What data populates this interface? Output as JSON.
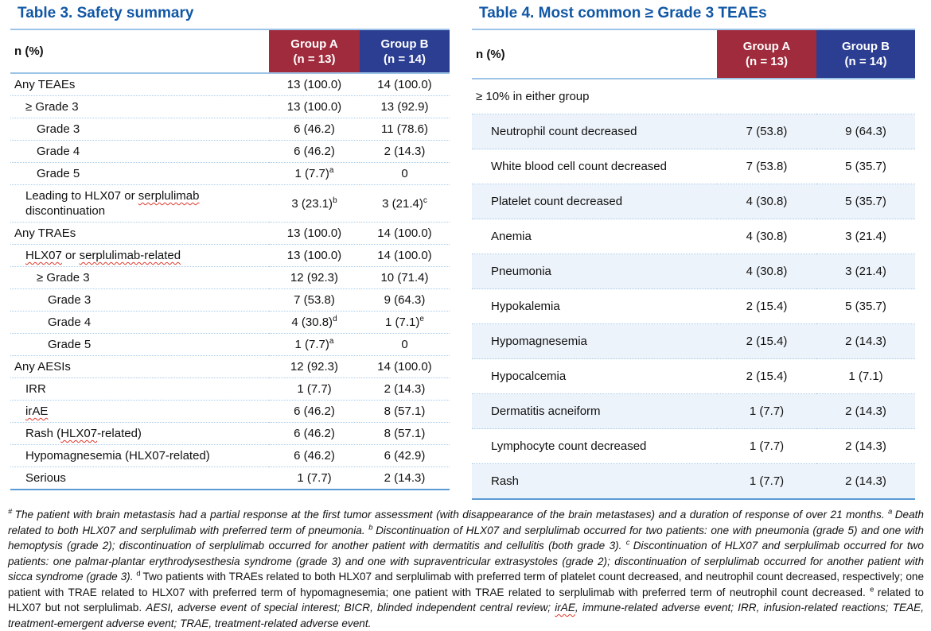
{
  "colors": {
    "title_blue": "#1157A6",
    "group_a_bg": "#A02B3C",
    "group_b_bg": "#2B3E92",
    "header_line": "#9DC3E6",
    "row_separator": "#A6CBEA",
    "bottom_border": "#5B9BD5",
    "alt_row_bg": "#EDF3FA",
    "squiggle_red": "#E0392B"
  },
  "table3": {
    "title": "Table 3. Safety summary",
    "header": {
      "label": "n (%)",
      "group_a_line1": "Group A",
      "group_a_line2": "(n = 13)",
      "group_b_line1": "Group B",
      "group_b_line2": "(n = 14)"
    },
    "rows": [
      {
        "indent": 0,
        "label": [
          {
            "t": "Any TEAEs"
          }
        ],
        "a": "13 (100.0)",
        "a_sup": "",
        "b": "14 (100.0)",
        "b_sup": ""
      },
      {
        "indent": 1,
        "label": [
          {
            "t": "≥ Grade 3"
          }
        ],
        "a": "13 (100.0)",
        "a_sup": "",
        "b": "13 (92.9)",
        "b_sup": ""
      },
      {
        "indent": 2,
        "label": [
          {
            "t": "Grade 3"
          }
        ],
        "a": "6 (46.2)",
        "a_sup": "",
        "b": "11 (78.6)",
        "b_sup": ""
      },
      {
        "indent": 2,
        "label": [
          {
            "t": "Grade 4"
          }
        ],
        "a": "6 (46.2)",
        "a_sup": "",
        "b": "2 (14.3)",
        "b_sup": ""
      },
      {
        "indent": 2,
        "label": [
          {
            "t": "Grade 5"
          }
        ],
        "a": "1 (7.7)",
        "a_sup": "a",
        "b": "0",
        "b_sup": ""
      },
      {
        "indent": 1,
        "label": [
          {
            "t": "Leading to HLX07 or "
          },
          {
            "t": "serplulimab",
            "wavy": true
          },
          {
            "t": " discontinuation"
          }
        ],
        "a": "3 (23.1)",
        "a_sup": "b",
        "b": "3 (21.4)",
        "b_sup": "c"
      },
      {
        "indent": 0,
        "label": [
          {
            "t": "Any TRAEs"
          }
        ],
        "a": "13 (100.0)",
        "a_sup": "",
        "b": "14 (100.0)",
        "b_sup": ""
      },
      {
        "indent": 1,
        "label": [
          {
            "t": "HLX07",
            "wavy": true
          },
          {
            "t": " or "
          },
          {
            "t": "serplulimab-related",
            "wavy": true
          }
        ],
        "a": "13 (100.0)",
        "a_sup": "",
        "b": "14 (100.0)",
        "b_sup": ""
      },
      {
        "indent": 2,
        "label": [
          {
            "t": "≥ Grade 3"
          }
        ],
        "a": "12 (92.3)",
        "a_sup": "",
        "b": "10 (71.4)",
        "b_sup": ""
      },
      {
        "indent": 3,
        "label": [
          {
            "t": "Grade 3"
          }
        ],
        "a": "7 (53.8)",
        "a_sup": "",
        "b": "9 (64.3)",
        "b_sup": ""
      },
      {
        "indent": 3,
        "label": [
          {
            "t": "Grade 4"
          }
        ],
        "a": "4 (30.8)",
        "a_sup": "d",
        "b": "1 (7.1)",
        "b_sup": "e"
      },
      {
        "indent": 3,
        "label": [
          {
            "t": "Grade 5"
          }
        ],
        "a": "1 (7.7)",
        "a_sup": "a",
        "b": "0",
        "b_sup": ""
      },
      {
        "indent": 0,
        "label": [
          {
            "t": "Any AESIs"
          }
        ],
        "a": "12 (92.3)",
        "a_sup": "",
        "b": "14 (100.0)",
        "b_sup": ""
      },
      {
        "indent": 1,
        "label": [
          {
            "t": "IRR"
          }
        ],
        "a": "1 (7.7)",
        "a_sup": "",
        "b": "2 (14.3)",
        "b_sup": ""
      },
      {
        "indent": 1,
        "label": [
          {
            "t": "irAE",
            "wavy": true
          }
        ],
        "a": "6 (46.2)",
        "a_sup": "",
        "b": "8 (57.1)",
        "b_sup": ""
      },
      {
        "indent": 1,
        "label": [
          {
            "t": "Rash ("
          },
          {
            "t": "HLX07",
            "wavy": true
          },
          {
            "t": "-related)"
          }
        ],
        "a": "6 (46.2)",
        "a_sup": "",
        "b": "8 (57.1)",
        "b_sup": ""
      },
      {
        "indent": 1,
        "label": [
          {
            "t": "Hypomagnesemia (HLX07-related)"
          }
        ],
        "a": "6 (46.2)",
        "a_sup": "",
        "b": "6 (42.9)",
        "b_sup": ""
      },
      {
        "indent": 1,
        "label": [
          {
            "t": "Serious"
          }
        ],
        "a": "1 (7.7)",
        "a_sup": "",
        "b": "2 (14.3)",
        "b_sup": ""
      }
    ]
  },
  "table4": {
    "title": "Table 4. Most common ≥ Grade 3 TEAEs",
    "header": {
      "label": "n (%)",
      "group_a_line1": "Group A",
      "group_a_line2": "(n = 13)",
      "group_b_line1": "Group B",
      "group_b_line2": "(n = 14)"
    },
    "subheader_row": "≥ 10% in either group",
    "rows": [
      {
        "label": "Neutrophil count decreased",
        "a": "7 (53.8)",
        "b": "9 (64.3)",
        "alt": true
      },
      {
        "label": "White blood cell count decreased",
        "a": "7 (53.8)",
        "b": "5 (35.7)",
        "alt": false
      },
      {
        "label": "Platelet count decreased",
        "a": "4 (30.8)",
        "b": "5 (35.7)",
        "alt": true
      },
      {
        "label": "Anemia",
        "a": "4 (30.8)",
        "b": "3 (21.4)",
        "alt": false
      },
      {
        "label": "Pneumonia",
        "a": "4 (30.8)",
        "b": "3 (21.4)",
        "alt": true
      },
      {
        "label": "Hypokalemia",
        "a": "2 (15.4)",
        "b": "5 (35.7)",
        "alt": false
      },
      {
        "label": "Hypomagnesemia",
        "a": "2 (15.4)",
        "b": "2 (14.3)",
        "alt": true
      },
      {
        "label": "Hypocalcemia",
        "a": "2 (15.4)",
        "b": "1 (7.1)",
        "alt": false
      },
      {
        "label": "Dermatitis acneiform",
        "a": "1 (7.7)",
        "b": "2 (14.3)",
        "alt": true
      },
      {
        "label": "Lymphocyte count decreased",
        "a": "1 (7.7)",
        "b": "2 (14.3)",
        "alt": false
      },
      {
        "label": "Rash",
        "a": "1 (7.7)",
        "b": "2 (14.3)",
        "alt": true
      }
    ]
  },
  "footnote": {
    "segments": [
      {
        "sup": "#",
        "text": "The patient with brain metastasis had a partial response at the first tumor assessment (with disappearance of the brain metastases) and a duration of response of over 21 months. ",
        "italic": true
      },
      {
        "sup": "a",
        "text": "Death related to both HLX07 and serplulimab with preferred term of pneumonia. ",
        "italic": true
      },
      {
        "sup": "b",
        "text": "Discontinuation of HLX07 and serplulimab occurred for two patients: one with pneumonia (grade 5) and one with hemoptysis (grade 2); discontinuation of serplulimab occurred for another patient with dermatitis and cellulitis (both grade 3). ",
        "italic": true
      },
      {
        "sup": "c",
        "text": "Discontinuation of HLX07 and serplulimab occurred for two patients: one palmar-plantar erythrodysesthesia syndrome (grade 3) and one with supraventricular extrasystoles (grade 2); discontinuation of serplulimab occurred for another patient with sicca syndrome (grade 3). ",
        "italic": true
      },
      {
        "sup": "d",
        "text": "Two patients with TRAEs related to both HLX07 and serplulimab with preferred term of platelet count decreased, and neutrophil count decreased, respectively; one patient with TRAE related to HLX07 with preferred term of hypomagnesemia; one patient with TRAE related to serplulimab with preferred term of neutrophil count decreased. ",
        "italic": false
      },
      {
        "sup": "e",
        "text": "related to HLX07 but not serplulimab. ",
        "italic": false
      },
      {
        "sup": "",
        "text": "AESI, adverse event of special interest; BICR, blinded independent central review; ",
        "italic": true
      },
      {
        "sup": "",
        "text": "irAE",
        "italic": true,
        "wavy": true
      },
      {
        "sup": "",
        "text": ", immune-related adverse event; IRR, infusion-related reactions; TEAE, treatment-emergent adverse event; TRAE, treatment-related adverse event.",
        "italic": true
      }
    ]
  }
}
